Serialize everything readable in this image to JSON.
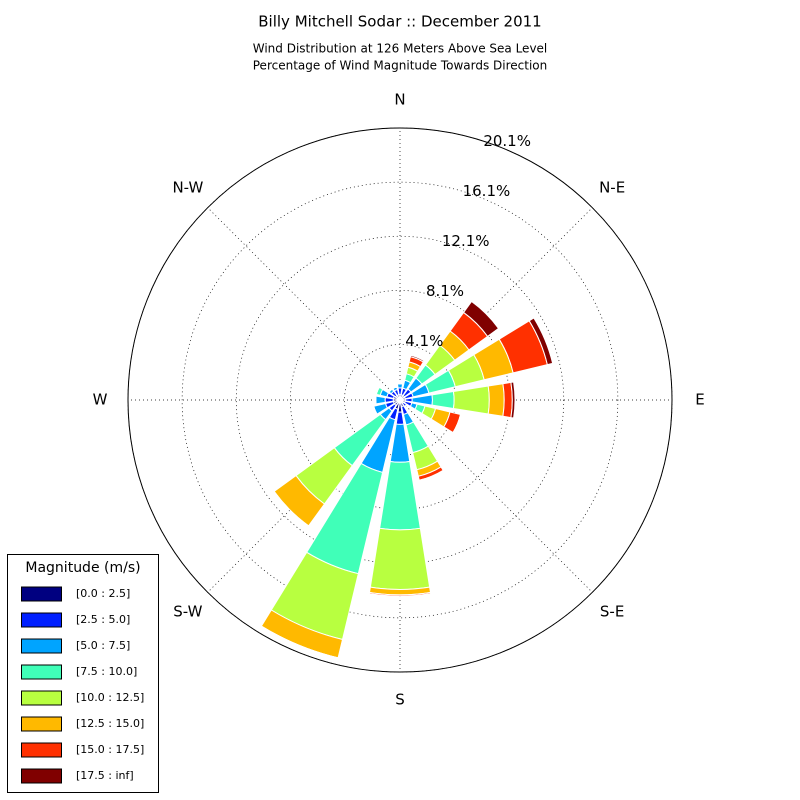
{
  "chart_data": {
    "type": "windrose",
    "title": "Billy Mitchell Sodar :: December 2011",
    "subtitle": [
      "Wind Distribution at 126 Meters Above Sea Level",
      "Percentage of Wind Magnitude Towards Direction"
    ],
    "categories": [
      "N",
      null,
      "N-E",
      null,
      "E",
      null,
      "S-E",
      null,
      "S",
      null,
      "S-W",
      null,
      "W",
      null,
      "N-W",
      null
    ],
    "rlim": [
      0,
      20.1
    ],
    "rticks": [
      {
        "value": 4.1,
        "label": "4.1%"
      },
      {
        "value": 8.1,
        "label": "8.1%"
      },
      {
        "value": 12.1,
        "label": "12.1%"
      },
      {
        "value": 16.1,
        "label": "16.1%"
      },
      {
        "value": 20.1,
        "label": "20.1%"
      }
    ],
    "grid": true,
    "legend_title": "Magnitude (m/s)",
    "legend_position": "lower left",
    "series": [
      {
        "name": "[0.0 : 2.5]",
        "color": "#000080",
        "values": [
          0.4,
          0.4,
          0.4,
          0.4,
          0.4,
          0.4,
          0.3,
          0.5,
          0.9,
          0.7,
          0.5,
          0.5,
          0.5,
          0.5,
          0.4,
          0.4
        ]
      },
      {
        "name": "[2.5 : 5.0]",
        "color": "#0020ff",
        "values": [
          0.5,
          0.5,
          0.6,
          0.6,
          0.5,
          0.5,
          0.3,
          0.6,
          0.9,
          0.8,
          0.5,
          0.6,
          0.6,
          0.5,
          0.4,
          0.4
        ]
      },
      {
        "name": "[5.0 : 7.5]",
        "color": "#00a4ff",
        "values": [
          0.3,
          0.6,
          1.0,
          1.2,
          1.5,
          0.4,
          0,
          0.8,
          2.8,
          4.0,
          0.8,
          0.9,
          0.7,
          0.5,
          0.2,
          0.2
        ]
      },
      {
        "name": "[7.5 : 10.0]",
        "color": "#40ffb8",
        "values": [
          0,
          0.5,
          1.2,
          2.0,
          1.6,
          0.6,
          0,
          2.1,
          5.0,
          7.7,
          4.2,
          0,
          0,
          0.3,
          0,
          0
        ]
      },
      {
        "name": "[10.0 : 12.5]",
        "color": "#b8ff40",
        "values": [
          0,
          0.5,
          1.8,
          2.2,
          2.6,
          0.8,
          0,
          1.3,
          4.4,
          5.0,
          3.5,
          0,
          0,
          0,
          0,
          0
        ]
      },
      {
        "name": "[12.5 : 15.0]",
        "color": "#ffb900",
        "values": [
          0,
          0.4,
          1.3,
          2.2,
          1.1,
          1.1,
          0,
          0.5,
          0.4,
          1.4,
          2.0,
          0,
          0,
          0,
          0,
          0
        ]
      },
      {
        "name": "[15.0 : 17.5]",
        "color": "#ff3000",
        "values": [
          0,
          0.4,
          1.7,
          2.6,
          0.6,
          0.8,
          0,
          0.3,
          0.1,
          0,
          0,
          0,
          0,
          0,
          0,
          0
        ]
      },
      {
        "name": "[17.5 : inf]",
        "color": "#800000",
        "values": [
          0,
          0.1,
          1.0,
          0.4,
          0.2,
          0,
          0,
          0,
          0,
          0,
          0,
          0,
          0,
          0,
          0,
          0
        ]
      }
    ]
  }
}
